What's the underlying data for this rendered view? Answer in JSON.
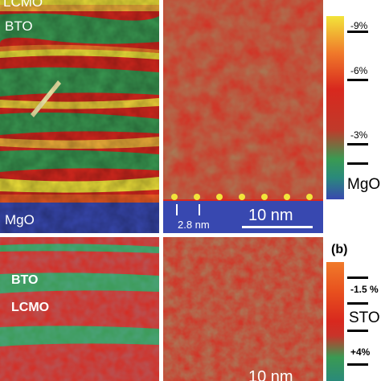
{
  "top_left": {
    "layers": [
      "LCMO",
      "BTO"
    ],
    "substrate": "MgO"
  },
  "top_right": {
    "spacing": "2.8 nm",
    "scalebar": "10 nm"
  },
  "bottom_left": {
    "layers": [
      "BTO",
      "LCMO"
    ]
  },
  "bottom_right": {
    "scalebar": "10 nm"
  },
  "colorbar_top": {
    "ticks": [
      "-9%",
      "-6%",
      "-3%"
    ],
    "end_label": "MgO"
  },
  "colorbar_bottom": {
    "panel_label": "(b)",
    "ticks": [
      "-1.5 %",
      "+4%"
    ],
    "end_label": "STO"
  },
  "colors": {
    "red": "#d8281e",
    "green": "#3a9a52",
    "yellow": "#f2e43a",
    "blue": "#3848b0",
    "orange": "#f07a2a"
  }
}
